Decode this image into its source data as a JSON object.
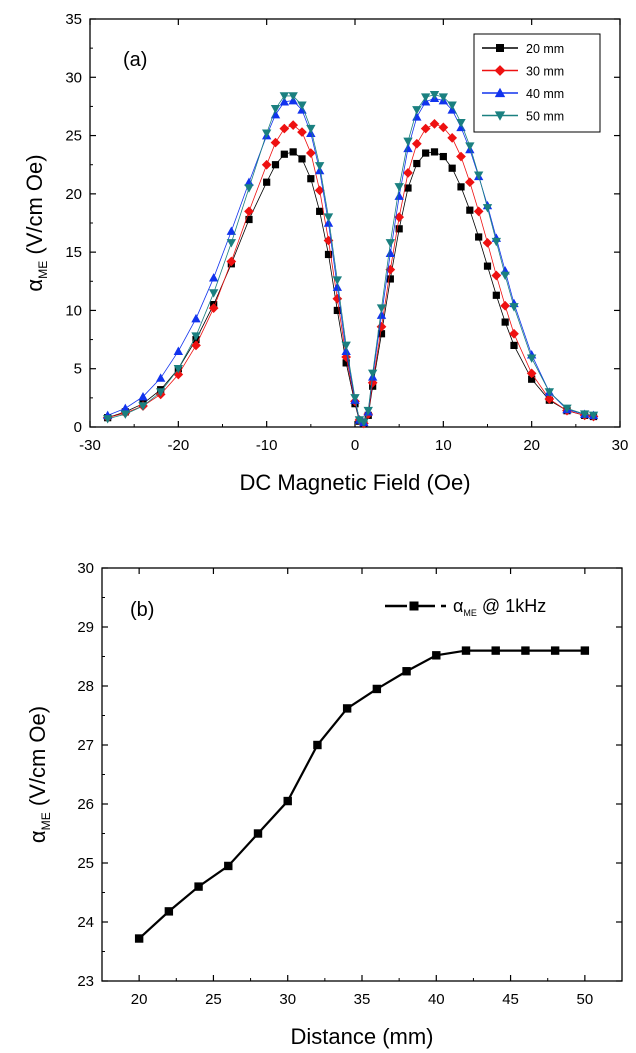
{
  "chart_data": [
    {
      "type": "scatter",
      "panel_label": "(a)",
      "xlabel": "DC Magnetic Field (Oe)",
      "ylabel": "αME (V/cm Oe)",
      "ylabel_main": "α",
      "ylabel_sub": "ME",
      "ylabel_rest": " (V/cm Oe)",
      "xlim": [
        -30,
        30
      ],
      "ylim": [
        0,
        35
      ],
      "xticks": [
        -30,
        -20,
        -10,
        0,
        10,
        20,
        30
      ],
      "yticks": [
        0,
        5,
        10,
        15,
        20,
        25,
        30,
        35
      ],
      "legend_position": "top-right",
      "grid": false,
      "series": [
        {
          "name": "20 mm",
          "color": "#000000",
          "marker": "square",
          "x": [
            -28,
            -26,
            -24,
            -22,
            -20,
            -18,
            -16,
            -14,
            -12,
            -10,
            -9,
            -8,
            -7,
            -6,
            -5,
            -4,
            -3,
            -2,
            -1,
            0,
            0.5,
            1,
            1.5,
            2,
            3,
            4,
            5,
            6,
            7,
            8,
            9,
            10,
            11,
            12,
            13,
            14,
            15,
            16,
            17,
            18,
            20,
            22,
            24,
            26,
            27
          ],
          "y": [
            0.8,
            1.3,
            2.0,
            3.2,
            5.0,
            7.5,
            10.5,
            14.0,
            17.8,
            21.0,
            22.5,
            23.4,
            23.6,
            23.0,
            21.3,
            18.5,
            14.8,
            10.0,
            5.5,
            2.0,
            0.5,
            0.3,
            1.0,
            3.5,
            8.0,
            12.7,
            17.0,
            20.5,
            22.6,
            23.5,
            23.6,
            23.2,
            22.2,
            20.6,
            18.6,
            16.3,
            13.8,
            11.3,
            9.0,
            7.0,
            4.1,
            2.3,
            1.4,
            1.0,
            0.9
          ]
        },
        {
          "name": "30 mm",
          "color": "#ee1111",
          "marker": "diamond",
          "x": [
            -28,
            -26,
            -24,
            -22,
            -20,
            -18,
            -16,
            -14,
            -12,
            -10,
            -9,
            -8,
            -7,
            -6,
            -5,
            -4,
            -3,
            -2,
            -1,
            0,
            0.5,
            1,
            1.5,
            2,
            3,
            4,
            5,
            6,
            7,
            8,
            9,
            10,
            11,
            12,
            13,
            14,
            15,
            16,
            17,
            18,
            20,
            22,
            24,
            26,
            27
          ],
          "y": [
            0.8,
            1.2,
            1.8,
            2.8,
            4.5,
            7.0,
            10.2,
            14.2,
            18.5,
            22.5,
            24.4,
            25.6,
            25.9,
            25.3,
            23.5,
            20.3,
            16.0,
            11.0,
            6.0,
            2.2,
            0.6,
            0.3,
            1.1,
            3.8,
            8.6,
            13.5,
            18.0,
            21.8,
            24.3,
            25.6,
            26.0,
            25.7,
            24.8,
            23.2,
            21.0,
            18.5,
            15.8,
            13.0,
            10.4,
            8.0,
            4.6,
            2.4,
            1.4,
            1.0,
            0.9
          ]
        },
        {
          "name": "40 mm",
          "color": "#1133ee",
          "marker": "triangle-up",
          "x": [
            -28,
            -26,
            -24,
            -22,
            -20,
            -18,
            -16,
            -14,
            -12,
            -10,
            -9,
            -8,
            -7,
            -6,
            -5,
            -4,
            -3,
            -2,
            -1,
            0,
            0.5,
            1,
            1.5,
            2,
            3,
            4,
            5,
            6,
            7,
            8,
            9,
            10,
            11,
            12,
            13,
            14,
            15,
            16,
            17,
            18,
            20,
            22,
            24,
            26,
            27
          ],
          "y": [
            1.0,
            1.6,
            2.6,
            4.2,
            6.5,
            9.3,
            12.8,
            16.8,
            21.0,
            25.0,
            26.8,
            27.9,
            28.0,
            27.2,
            25.2,
            22.0,
            17.5,
            12.0,
            6.5,
            2.3,
            0.6,
            0.4,
            1.3,
            4.3,
            9.6,
            14.9,
            19.8,
            23.9,
            26.6,
            27.9,
            28.2,
            28.0,
            27.2,
            25.7,
            23.8,
            21.5,
            19.0,
            16.2,
            13.4,
            10.6,
            6.2,
            3.0,
            1.5,
            1.1,
            1.0
          ]
        },
        {
          "name": "50 mm",
          "color": "#1a8080",
          "marker": "triangle-down",
          "x": [
            -28,
            -26,
            -24,
            -22,
            -20,
            -18,
            -16,
            -14,
            -12,
            -10,
            -9,
            -8,
            -7,
            -6,
            -5,
            -4,
            -3,
            -2,
            -1,
            0,
            0.5,
            1,
            1.5,
            2,
            3,
            4,
            5,
            6,
            7,
            8,
            9,
            10,
            11,
            12,
            13,
            14,
            15,
            16,
            17,
            18,
            20,
            22,
            24,
            26,
            27
          ],
          "y": [
            0.7,
            1.1,
            1.8,
            3.0,
            5.0,
            7.8,
            11.5,
            15.8,
            20.5,
            25.2,
            27.3,
            28.4,
            28.4,
            27.6,
            25.6,
            22.4,
            18.0,
            12.6,
            7.0,
            2.5,
            0.6,
            0.4,
            1.4,
            4.6,
            10.2,
            15.8,
            20.6,
            24.5,
            27.2,
            28.3,
            28.5,
            28.3,
            27.6,
            26.1,
            24.1,
            21.6,
            18.8,
            15.9,
            13.0,
            10.3,
            5.9,
            3.0,
            1.6,
            1.1,
            1.0
          ]
        }
      ]
    },
    {
      "type": "line",
      "panel_label": "(b)",
      "xlabel": "Distance (mm)",
      "ylabel": "αME (V/cm Oe)",
      "ylabel_main": "α",
      "ylabel_sub": "ME",
      "ylabel_rest": " (V/cm Oe)",
      "xlim": [
        17.5,
        52.5
      ],
      "ylim": [
        23,
        30
      ],
      "xticks": [
        20,
        25,
        30,
        35,
        40,
        45,
        50
      ],
      "yticks": [
        23,
        24,
        25,
        26,
        27,
        28,
        29,
        30
      ],
      "legend_position": "top-right",
      "grid": false,
      "series": [
        {
          "name": "αME @ 1kHz",
          "name_main": "α",
          "name_sub": "ME",
          "name_rest": " @ 1kHz",
          "color": "#000000",
          "marker": "square",
          "x": [
            20,
            22,
            24,
            26,
            28,
            30,
            32,
            34,
            36,
            38,
            40,
            42,
            44,
            46,
            48,
            50
          ],
          "y": [
            23.72,
            24.18,
            24.6,
            24.95,
            25.5,
            26.05,
            27.0,
            27.62,
            27.95,
            28.25,
            28.52,
            28.6,
            28.6,
            28.6,
            28.6,
            28.6
          ]
        }
      ]
    }
  ]
}
